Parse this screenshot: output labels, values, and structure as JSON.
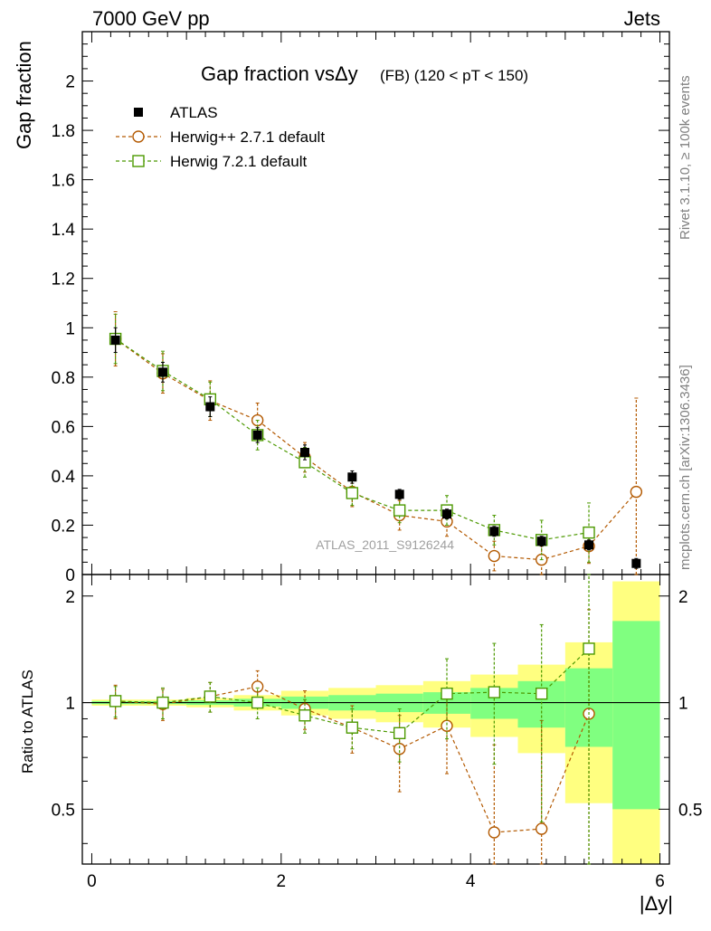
{
  "header": {
    "top_left": "7000 GeV pp",
    "top_right": "Jets",
    "side_label_top": "Rivet 3.1.10, ≥ 100k events",
    "side_label_bottom": "mcplots.cern.ch [arXiv:1306.3436]"
  },
  "watermark": "ATLAS_2011_S9126244",
  "chart_data": [
    {
      "type": "scatter",
      "title": "Gap fraction vsΔy (FB) (120 < pT < 150)",
      "title_parts": {
        "main": "Gap fraction vsΔy",
        "sub": "(FB) (120 < pT < 150)"
      },
      "xlabel": "|Δy|",
      "ylabel": "Gap fraction",
      "xlim": [
        -0.1,
        6.1
      ],
      "ylim": [
        0,
        2.2
      ],
      "x_ticks": [
        "0",
        "2",
        "4",
        "6"
      ],
      "y_ticks": [
        "0",
        "0.2",
        "0.4",
        "0.6",
        "0.8",
        "1",
        "1.2",
        "1.4",
        "1.6",
        "1.8",
        "2"
      ],
      "legend_position": "top-left",
      "x": [
        0.25,
        0.75,
        1.25,
        1.75,
        2.25,
        2.75,
        3.25,
        3.75,
        4.25,
        4.75,
        5.25,
        5.75
      ],
      "series": [
        {
          "name": "ATLAS",
          "style": "data",
          "color": "#000000",
          "values": [
            0.95,
            0.82,
            0.68,
            0.565,
            0.495,
            0.395,
            0.325,
            0.245,
            0.175,
            0.135,
            0.12,
            0.045
          ],
          "errors": [
            0.05,
            0.04,
            0.04,
            0.03,
            0.03,
            0.025,
            0.02,
            0.02,
            0.02,
            0.02,
            0.02,
            0.02
          ]
        },
        {
          "name": "Herwig++ 2.7.1 default",
          "style": "circle",
          "color": "#b35900",
          "values": [
            0.955,
            0.815,
            0.705,
            0.625,
            0.475,
            0.335,
            0.24,
            0.215,
            0.075,
            0.06,
            0.115,
            0.335
          ],
          "errors": [
            0.11,
            0.08,
            0.08,
            0.07,
            0.06,
            0.06,
            0.06,
            0.06,
            0.06,
            0.06,
            0.07,
            0.38
          ]
        },
        {
          "name": "Herwig 7.2.1 default",
          "style": "square",
          "color": "#4c9900",
          "values": [
            0.955,
            0.825,
            0.71,
            0.565,
            0.455,
            0.33,
            0.26,
            0.26,
            0.18,
            0.14,
            0.17,
            null
          ],
          "errors": [
            0.1,
            0.08,
            0.07,
            0.06,
            0.06,
            0.05,
            0.05,
            0.06,
            0.06,
            0.08,
            0.12,
            null
          ]
        }
      ]
    },
    {
      "type": "scatter",
      "title": "",
      "xlabel": "|Δy|",
      "ylabel": "Ratio to ATLAS",
      "xlim": [
        -0.1,
        6.1
      ],
      "ylim": [
        0.35,
        2.3
      ],
      "y_scale": "log",
      "x_ticks": [
        "0",
        "2",
        "4",
        "6"
      ],
      "y_ticks": [
        "0.5",
        "1",
        "2"
      ],
      "reference_line": 1,
      "bands": {
        "bin_edges": [
          0,
          0.5,
          1,
          1.5,
          2,
          2.5,
          3,
          3.5,
          4,
          4.5,
          5,
          5.5,
          6
        ],
        "yellow_lo": [
          0.98,
          0.98,
          0.97,
          0.95,
          0.92,
          0.9,
          0.88,
          0.85,
          0.8,
          0.72,
          0.52,
          0.35
        ],
        "yellow_hi": [
          1.02,
          1.02,
          1.03,
          1.05,
          1.08,
          1.1,
          1.12,
          1.15,
          1.2,
          1.28,
          1.48,
          2.2
        ],
        "green_lo": [
          0.99,
          0.99,
          0.985,
          0.975,
          0.96,
          0.95,
          0.94,
          0.93,
          0.9,
          0.85,
          0.75,
          0.5
        ],
        "green_hi": [
          1.01,
          1.01,
          1.015,
          1.025,
          1.04,
          1.05,
          1.06,
          1.07,
          1.1,
          1.15,
          1.25,
          1.7
        ]
      },
      "x": [
        0.25,
        0.75,
        1.25,
        1.75,
        2.25,
        2.75,
        3.25,
        3.75,
        4.25,
        4.75,
        5.25
      ],
      "series": [
        {
          "name": "Herwig++ 2.7.1 default",
          "style": "circle",
          "color": "#b35900",
          "values": [
            1.01,
            0.99,
            1.04,
            1.11,
            0.96,
            0.85,
            0.74,
            0.86,
            0.43,
            0.44,
            0.93
          ],
          "errors": [
            0.11,
            0.1,
            0.1,
            0.12,
            0.12,
            0.13,
            0.18,
            0.23,
            0.33,
            0.45,
            0.9
          ]
        },
        {
          "name": "Herwig 7.2.1 default",
          "style": "square",
          "color": "#4c9900",
          "values": [
            1.01,
            1.0,
            1.04,
            1.0,
            0.92,
            0.85,
            0.82,
            1.06,
            1.07,
            1.06,
            1.42
          ],
          "errors": [
            0.1,
            0.1,
            0.1,
            0.1,
            0.1,
            0.11,
            0.14,
            0.27,
            0.4,
            0.6,
            1.3
          ]
        }
      ]
    }
  ]
}
